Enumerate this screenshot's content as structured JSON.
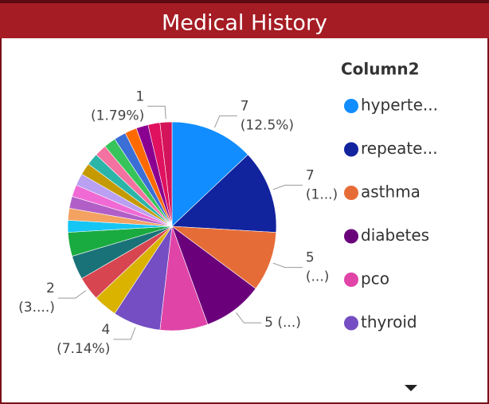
{
  "chart_data": {
    "type": "pie",
    "title": "Medical History",
    "legend_title": "Column2",
    "categories": [
      "hyperte...",
      "repeate...",
      "asthma",
      "diabetes",
      "pco",
      "thyroid",
      null,
      null,
      null,
      null,
      null,
      null,
      null,
      null,
      null,
      null,
      null,
      null,
      null,
      null,
      null,
      null,
      null,
      null
    ],
    "values": [
      7,
      7,
      5,
      5,
      4,
      4,
      2,
      2,
      2,
      2,
      1,
      1,
      1,
      1,
      1,
      1,
      1,
      1,
      1,
      1,
      1,
      1,
      1,
      1
    ],
    "value_labels": [
      [
        "7",
        "(12.5%)"
      ],
      [
        "7",
        "(1...)"
      ],
      [
        "5",
        "(...)"
      ],
      [
        "5 (...)"
      ],
      null,
      [
        "4",
        "(7.14%)"
      ],
      null,
      [
        "2",
        "(3....)"
      ],
      null,
      null,
      null,
      null,
      null,
      null,
      null,
      null,
      null,
      null,
      null,
      null,
      null,
      null,
      null,
      [
        "1",
        "(1.79%)"
      ]
    ],
    "colors": [
      "#118dff",
      "#12239e",
      "#e66c37",
      "#6b007b",
      "#e044a7",
      "#744ec2",
      "#d9b300",
      "#d64550",
      "#197278",
      "#1aab40",
      "#15c6f4",
      "#f4a261",
      "#b15fc7",
      "#f06ad5",
      "#b9a0f2",
      "#c49a00",
      "#2bb5a8",
      "#f472a0",
      "#37c45a",
      "#3b6fd6",
      "#ff6a00",
      "#8a0090",
      "#e0115f",
      "#d4145a"
    ],
    "legend_position": "right"
  }
}
